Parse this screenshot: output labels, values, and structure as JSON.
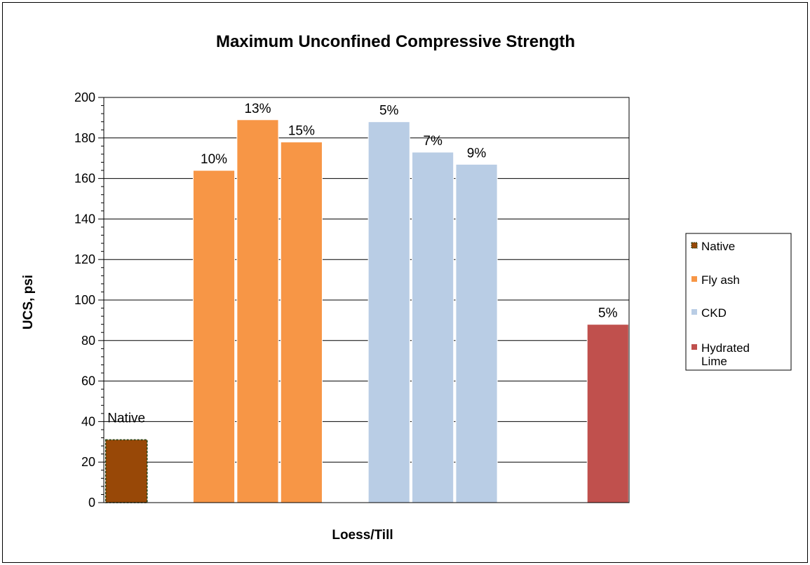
{
  "chart_data": {
    "type": "bar",
    "title": "Maximum Unconfined Compressive Strength",
    "xlabel": "Loess/Till",
    "ylabel": "UCS, psi",
    "ylim": [
      0,
      200
    ],
    "yticks": [
      "0",
      "20",
      "40",
      "60",
      "80",
      "100",
      "120",
      "140",
      "160",
      "180",
      "200"
    ],
    "grid": true,
    "legend_position": "right",
    "groups": [
      {
        "series": "Native",
        "color": "#984807",
        "bars": [
          {
            "label": "Native",
            "value": 31
          }
        ]
      },
      {
        "series": "Fly ash",
        "color": "#F79646",
        "bars": [
          {
            "label": "10%",
            "value": 164
          },
          {
            "label": "13%",
            "value": 189
          },
          {
            "label": "15%",
            "value": 178
          }
        ]
      },
      {
        "series": "CKD",
        "color": "#B9CDE5",
        "bars": [
          {
            "label": "5%",
            "value": 188
          },
          {
            "label": "7%",
            "value": 173
          },
          {
            "label": "9%",
            "value": 167
          }
        ]
      },
      {
        "series": "Hydrated Lime",
        "color": "#C0504D",
        "bars": [
          {
            "label": "5%",
            "value": 88
          }
        ]
      }
    ],
    "legend": [
      {
        "text": "Native",
        "color": "#984807"
      },
      {
        "text": "Fly ash",
        "color": "#F79646"
      },
      {
        "text": "CKD",
        "color": "#B9CDE5"
      },
      {
        "text": "Hydrated Lime",
        "color": "#C0504D"
      }
    ]
  }
}
